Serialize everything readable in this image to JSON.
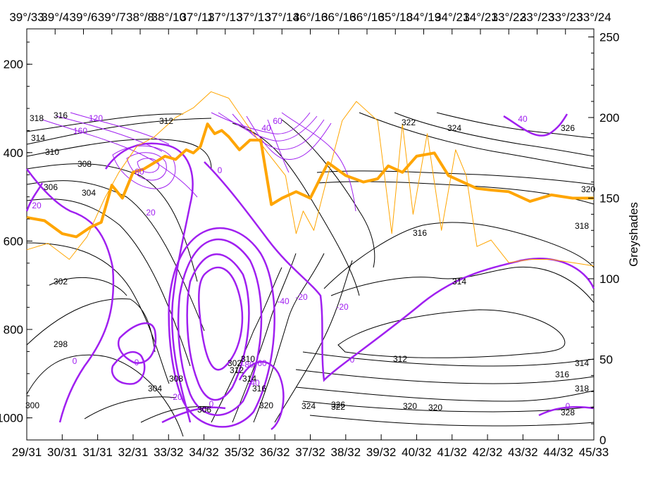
{
  "chart_data": {
    "type": "line",
    "title": "",
    "top_axis": {
      "ticks": [
        "39°/33",
        "39°/4",
        "39°/6",
        "39°/7",
        "38°/8",
        "38°/10",
        "37°/11",
        "37°/13",
        "37°/13",
        "37°/14",
        "36°/16",
        "36°/16",
        "36°/16",
        "35°/18",
        "34°/19",
        "34°/21",
        "34°/21",
        "33°/22",
        "33°/23",
        "33°/23",
        "33°/24"
      ]
    },
    "bottom_axis": {
      "ticks": [
        "29/31",
        "30/31",
        "31/31",
        "32/31",
        "33/32",
        "34/32",
        "35/32",
        "36/32",
        "37/32",
        "38/32",
        "39/32",
        "40/32",
        "41/32",
        "42/32",
        "43/32",
        "44/32",
        "45/33"
      ]
    },
    "left_axis": {
      "label": "",
      "range": [
        1050,
        120
      ],
      "ticks": [
        "200",
        "400",
        "600",
        "800",
        "1000"
      ],
      "tick_values": [
        200,
        400,
        600,
        800,
        1000
      ]
    },
    "right_axis": {
      "label": "Greyshades",
      "range": [
        0,
        255
      ],
      "ticks": [
        "0",
        "50",
        "100",
        "150",
        "200",
        "250"
      ],
      "tick_values": [
        0,
        50,
        100,
        150,
        200,
        250
      ]
    },
    "black_contour_labels": [
      "318",
      "316",
      "312",
      "314",
      "310",
      "308",
      "306",
      "304",
      "302",
      "298",
      "300",
      "302",
      "322",
      "324",
      "326",
      "320",
      "318",
      "316",
      "314",
      "312",
      "314",
      "316",
      "318",
      "320",
      "322",
      "320",
      "328",
      "326",
      "324",
      "320",
      "316",
      "314",
      "312",
      "310",
      "308",
      "306",
      "304"
    ],
    "purple_contour_labels": [
      "120",
      "160",
      "80",
      "20",
      "20",
      "0",
      "0",
      "0",
      "-20",
      "-40",
      "-60",
      "-80",
      "-40",
      "-20",
      "0",
      "60",
      "40",
      "-20",
      "0",
      "40",
      "0"
    ],
    "colors": {
      "black_contours": "#000000",
      "purple_contours": "#a020f0",
      "orange_thick": "#ffa500",
      "orange_thin": "#ffa500"
    },
    "series": [
      {
        "name": "",
        "color": "#ffa500",
        "axis": "right",
        "x": [
          0,
          0.5,
          1,
          1.4,
          1.8,
          2.1,
          2.4,
          2.7,
          3,
          3.3,
          3.6,
          3.9,
          4.2,
          4.5,
          4.7,
          4.9,
          5.1,
          5.3,
          5.5,
          5.7,
          6,
          6.3,
          6.6,
          6.9,
          7.2,
          7.4,
          7.6,
          8,
          8.5,
          9,
          9.5,
          9.9,
          10.2,
          10.6,
          11,
          11.5,
          11.9,
          12.3,
          12.7,
          13.1,
          13.6,
          14.2,
          14.8,
          15.4,
          16
        ],
        "y": [
          138,
          136,
          128,
          126,
          132,
          135,
          158,
          150,
          166,
          168,
          172,
          176,
          174,
          180,
          178,
          182,
          196,
          190,
          192,
          188,
          180,
          186,
          186,
          146,
          150,
          152,
          154,
          150,
          172,
          164,
          160,
          162,
          170,
          166,
          176,
          178,
          164,
          160,
          156,
          155,
          154,
          148,
          152,
          150,
          150
        ]
      },
      {
        "name": "",
        "color": "#ffa500",
        "axis": "right",
        "x": [
          0,
          0.6,
          1.2,
          1.7,
          2.2,
          2.6,
          3.1,
          3.6,
          4.2,
          4.7,
          5.2,
          5.7,
          6.2,
          6.8,
          7.3,
          7.6,
          7.8,
          8.1,
          8.4,
          8.9,
          9.3,
          9.9,
          10.3,
          10.6,
          10.9,
          11.3,
          11.7,
          12.1,
          12.4,
          12.7,
          13.1,
          13.6,
          14.2,
          14.8,
          15.4,
          16
        ],
        "y": [
          118,
          122,
          112,
          126,
          150,
          166,
          182,
          188,
          200,
          206,
          216,
          212,
          196,
          178,
          164,
          128,
          142,
          130,
          156,
          198,
          210,
          198,
          128,
          196,
          140,
          190,
          130,
          180,
          164,
          120,
          124,
          110,
          112,
          112,
          110,
          108
        ]
      }
    ]
  }
}
